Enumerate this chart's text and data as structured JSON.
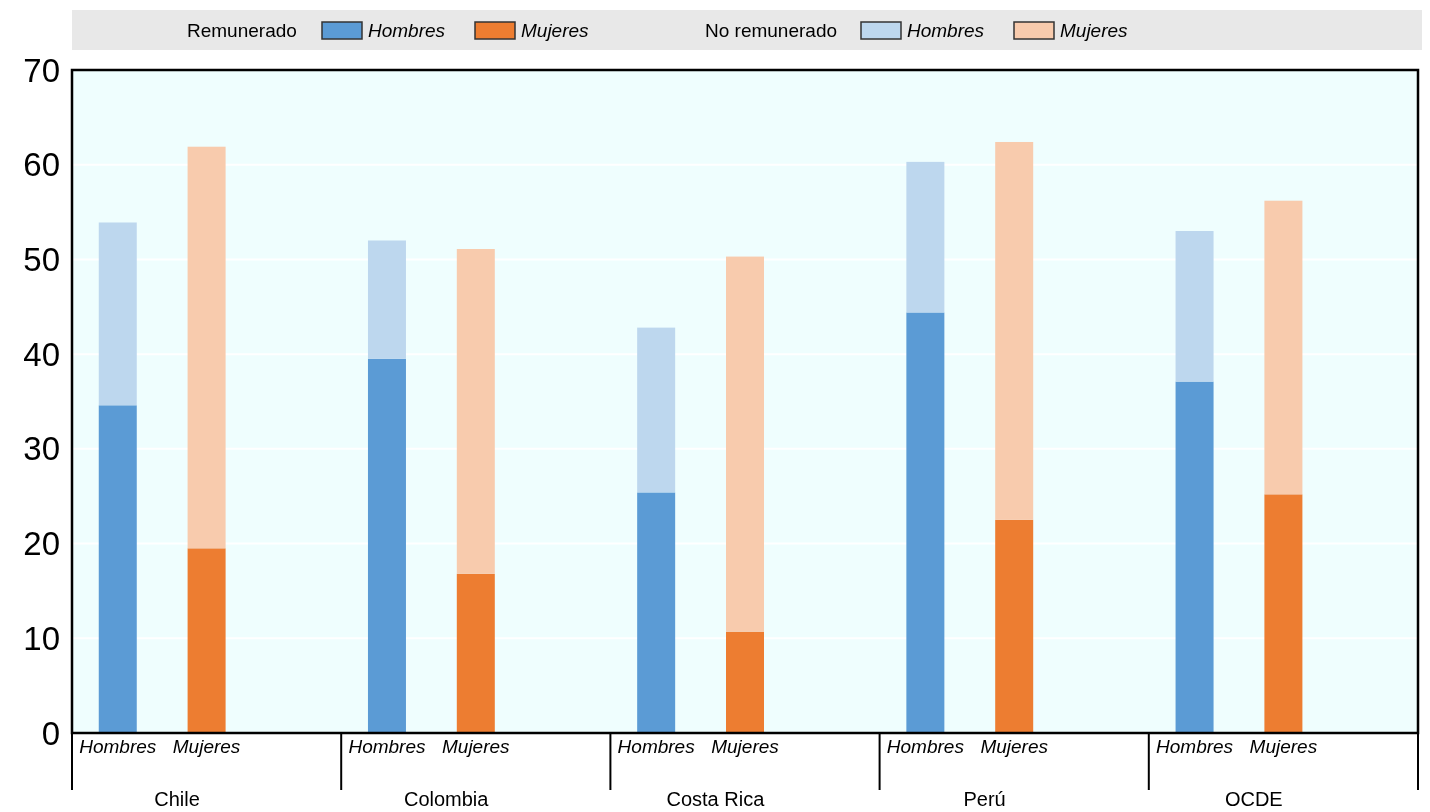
{
  "chart_data": {
    "type": "bar",
    "stacked": true,
    "categories": [
      "Hombres",
      "Mujeres",
      "Hombres",
      "Mujeres",
      "Hombres",
      "Mujeres",
      "Hombres",
      "Mujeres",
      "Hombres",
      "Mujeres"
    ],
    "series": [
      {
        "name": "Hombres",
        "color": "#5b9bd5",
        "values": [
          34.6,
          null,
          39.5,
          null,
          25.4,
          null,
          44.4,
          null,
          37.1,
          null
        ]
      },
      {
        "name": "Mujeres",
        "color": "#ed7d31",
        "values": [
          null,
          19.5,
          null,
          16.8,
          null,
          10.7,
          null,
          22.5,
          null,
          25.2
        ]
      },
      {
        "name": "Hombres",
        "color": "#bdd7ee",
        "values": [
          19.3,
          null,
          12.5,
          null,
          17.4,
          null,
          15.9,
          null,
          15.9,
          null
        ]
      },
      {
        "name": "Mujeres",
        "color": "#f8cbad",
        "values": [
          null,
          42.4,
          null,
          34.3,
          null,
          39.6,
          null,
          39.9,
          null,
          31.0
        ]
      }
    ],
    "annotations": [
      "Remunerado",
      "No remunerado",
      "Chile",
      "Colombia",
      "Costa Rica",
      "Perú",
      "OCDE"
    ],
    "ylim": [
      0,
      70
    ],
    "yticks": [
      0,
      10,
      20,
      30,
      40,
      50,
      60,
      70
    ],
    "grid": "y",
    "legend": "top"
  }
}
